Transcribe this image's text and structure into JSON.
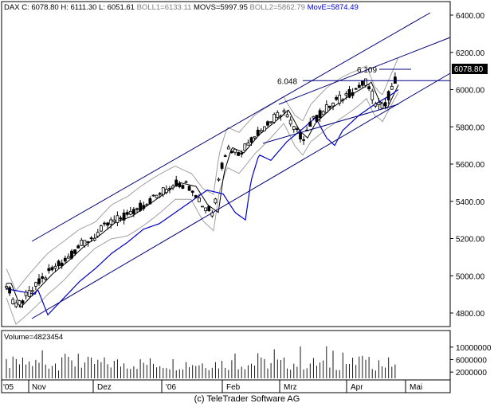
{
  "header": {
    "symbol": "DAX",
    "close_label": "C: 6078.80",
    "high_label": "H: 6111.30",
    "low_label": "L: 6051.61",
    "boll1_label": "BOLL1=6133.11",
    "movs_label": "MOVS=5997.95",
    "boll2_label": "BOLL2=5862.79",
    "move_label": "MovE=5874.49"
  },
  "price_tag": "6078.80",
  "footer": "(c) TeleTrader Software AG",
  "volume_label": "Volume=4823454",
  "colors": {
    "candle": "#000000",
    "boll": "#a0a0a0",
    "movs": "#000000",
    "move": "#0000cc",
    "channel": "#00007a",
    "move_label": "#0000cc"
  },
  "chart_data": {
    "type": "candlestick",
    "ylim": [
      4720,
      6440
    ],
    "yticks": [
      4800,
      5000,
      5200,
      5400,
      5600,
      5800,
      6000,
      6200,
      6400
    ],
    "ytick_labels": [
      "4800.00",
      "5000.00",
      "5200.00",
      "5400.00",
      "5600.00",
      "5800.00",
      "6000.00",
      "6200.00",
      "6400.00"
    ],
    "x_labels": [
      "'05",
      "Nov",
      "Dez",
      "'06",
      "Feb",
      "Mrz",
      "Apr",
      "Mai"
    ],
    "annotations": [
      {
        "label": "6.048",
        "value": 6048
      },
      {
        "label": "6.109",
        "value": 6109
      }
    ],
    "volume": {
      "label": "Volume=4823454",
      "yticks": [
        2000000,
        6000000,
        10000000
      ],
      "ytick_labels": [
        "2000000",
        "6000000",
        "10000000"
      ]
    }
  }
}
